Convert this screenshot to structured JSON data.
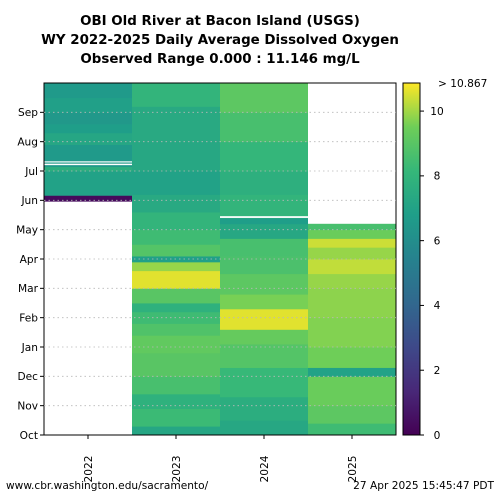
{
  "title_lines": [
    "OBI Old River at Bacon Island (USGS)",
    "WY 2022-2025 Daily Average Dissolved Oxygen",
    "Observed Range 0.000 : 11.146 mg/L"
  ],
  "footer": {
    "left": "www.cbr.washington.edu/sacramento/",
    "right": "27 Apr 2025 15:45:47 PDT"
  },
  "chart_data": {
    "type": "heatmap",
    "colormap": "viridis",
    "x_categories": [
      "2022",
      "2023",
      "2024",
      "2025"
    ],
    "y_tick_labels": [
      "Oct",
      "Nov",
      "Dec",
      "Jan",
      "Feb",
      "Mar",
      "Apr",
      "May",
      "Jun",
      "Jul",
      "Aug",
      "Sep"
    ],
    "y_range_months": [
      0,
      12
    ],
    "colorbar": {
      "min": 0,
      "max": 10.867,
      "ticks": [
        0,
        2,
        4,
        6,
        8,
        10
      ],
      "max_label": "> 10.867"
    },
    "series": [
      {
        "name": "2022",
        "bands": [
          {
            "start": 7.97,
            "end": 8.17,
            "value": 0.3
          },
          {
            "start": 8.17,
            "end": 9.0,
            "value": 7.0
          },
          {
            "start": 9.0,
            "end": 9.15,
            "value": 7.6
          },
          {
            "start": 9.15,
            "end": 9.9,
            "value": 6.6
          },
          {
            "start": 9.9,
            "end": 10.3,
            "value": 7.2
          },
          {
            "start": 10.3,
            "end": 10.6,
            "value": 6.8
          },
          {
            "start": 10.6,
            "end": 11.0,
            "value": 6.5
          },
          {
            "start": 11.0,
            "end": 11.5,
            "value": 6.9
          },
          {
            "start": 11.5,
            "end": 12.0,
            "value": 6.6
          }
        ],
        "gaps": [
          {
            "start": 9.2,
            "end": 9.25
          },
          {
            "start": 9.29,
            "end": 9.33
          }
        ]
      },
      {
        "name": "2023",
        "bands": [
          {
            "start": 0.0,
            "end": 0.3,
            "value": 7.2
          },
          {
            "start": 0.3,
            "end": 0.9,
            "value": 8.3
          },
          {
            "start": 0.9,
            "end": 1.4,
            "value": 7.8
          },
          {
            "start": 1.4,
            "end": 2.0,
            "value": 8.6
          },
          {
            "start": 2.0,
            "end": 2.8,
            "value": 9.0
          },
          {
            "start": 2.8,
            "end": 3.4,
            "value": 9.2
          },
          {
            "start": 3.4,
            "end": 3.8,
            "value": 8.8
          },
          {
            "start": 3.8,
            "end": 4.2,
            "value": 8.4
          },
          {
            "start": 4.2,
            "end": 4.5,
            "value": 7.8
          },
          {
            "start": 4.5,
            "end": 5.0,
            "value": 9.0
          },
          {
            "start": 5.0,
            "end": 5.6,
            "value": 10.6
          },
          {
            "start": 5.6,
            "end": 5.9,
            "value": 9.9
          },
          {
            "start": 5.9,
            "end": 6.1,
            "value": 6.9
          },
          {
            "start": 6.1,
            "end": 6.5,
            "value": 8.9
          },
          {
            "start": 6.5,
            "end": 7.0,
            "value": 8.4
          },
          {
            "start": 7.0,
            "end": 7.6,
            "value": 8.0
          },
          {
            "start": 7.6,
            "end": 8.2,
            "value": 7.4
          },
          {
            "start": 8.2,
            "end": 9.0,
            "value": 7.0
          },
          {
            "start": 9.0,
            "end": 10.0,
            "value": 7.3
          },
          {
            "start": 10.0,
            "end": 11.2,
            "value": 7.4
          },
          {
            "start": 11.2,
            "end": 12.0,
            "value": 8.0
          }
        ],
        "gaps": []
      },
      {
        "name": "2024",
        "bands": [
          {
            "start": 0.0,
            "end": 0.5,
            "value": 7.3
          },
          {
            "start": 0.5,
            "end": 1.3,
            "value": 7.6
          },
          {
            "start": 1.3,
            "end": 2.3,
            "value": 8.2
          },
          {
            "start": 2.3,
            "end": 3.1,
            "value": 8.9
          },
          {
            "start": 3.1,
            "end": 3.6,
            "value": 9.3
          },
          {
            "start": 3.6,
            "end": 4.3,
            "value": 10.6
          },
          {
            "start": 4.3,
            "end": 4.8,
            "value": 9.6
          },
          {
            "start": 4.8,
            "end": 5.5,
            "value": 9.1
          },
          {
            "start": 5.5,
            "end": 6.1,
            "value": 8.7
          },
          {
            "start": 6.1,
            "end": 6.7,
            "value": 8.6
          },
          {
            "start": 6.7,
            "end": 7.2,
            "value": 7.3
          },
          {
            "start": 7.2,
            "end": 7.4,
            "value": 6.8
          },
          {
            "start": 7.4,
            "end": 8.2,
            "value": 8.0
          },
          {
            "start": 8.2,
            "end": 9.0,
            "value": 7.7
          },
          {
            "start": 9.0,
            "end": 10.0,
            "value": 8.1
          },
          {
            "start": 10.0,
            "end": 11.0,
            "value": 8.6
          },
          {
            "start": 11.0,
            "end": 12.0,
            "value": 9.1
          }
        ],
        "gaps": [
          {
            "start": 7.4,
            "end": 7.46
          }
        ]
      },
      {
        "name": "2025",
        "bands": [
          {
            "start": 0.0,
            "end": 0.4,
            "value": 8.4
          },
          {
            "start": 0.4,
            "end": 1.0,
            "value": 9.1
          },
          {
            "start": 1.0,
            "end": 2.0,
            "value": 9.4
          },
          {
            "start": 2.0,
            "end": 2.3,
            "value": 7.0
          },
          {
            "start": 2.3,
            "end": 3.0,
            "value": 9.5
          },
          {
            "start": 3.0,
            "end": 4.0,
            "value": 9.7
          },
          {
            "start": 4.0,
            "end": 5.0,
            "value": 9.8
          },
          {
            "start": 5.0,
            "end": 5.5,
            "value": 9.9
          },
          {
            "start": 5.5,
            "end": 6.0,
            "value": 10.3
          },
          {
            "start": 6.0,
            "end": 6.4,
            "value": 9.9
          },
          {
            "start": 6.4,
            "end": 6.7,
            "value": 10.4
          },
          {
            "start": 6.7,
            "end": 7.0,
            "value": 9.4
          },
          {
            "start": 7.0,
            "end": 7.2,
            "value": 8.6
          }
        ],
        "gaps": []
      }
    ]
  }
}
